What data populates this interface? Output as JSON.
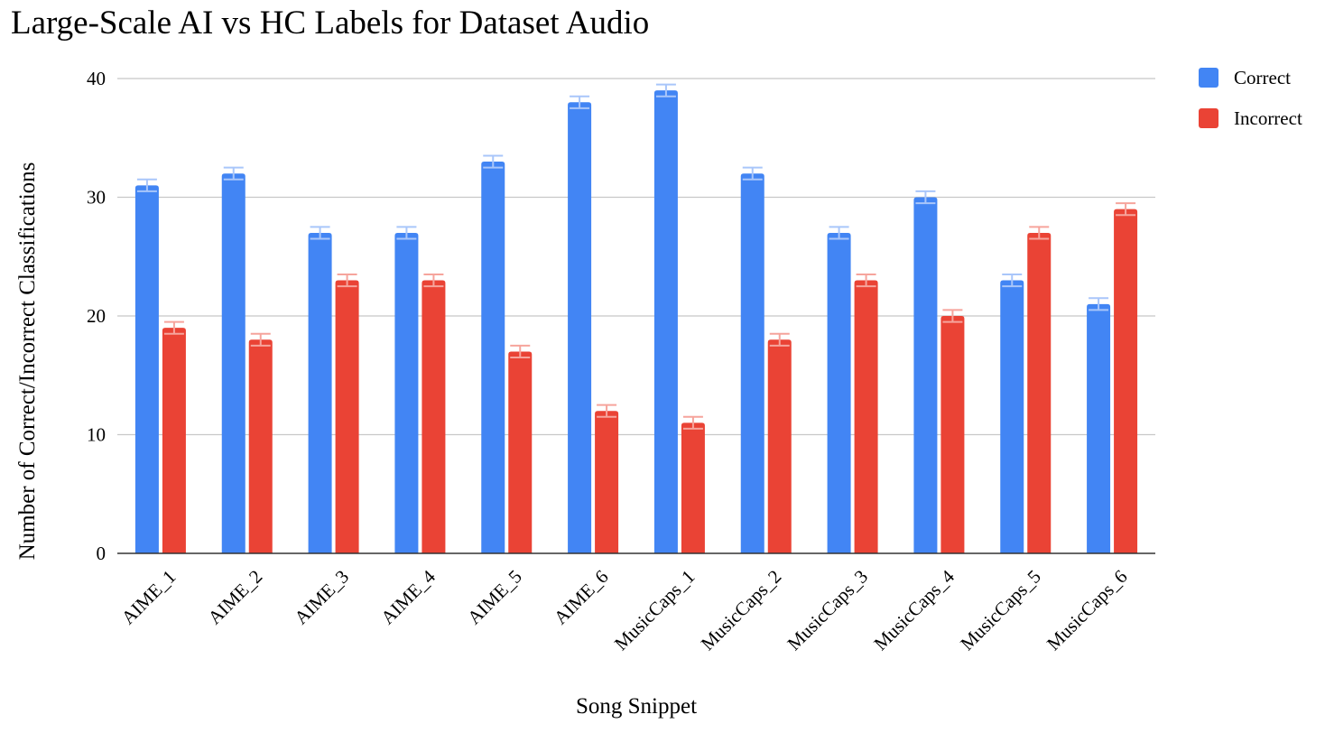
{
  "chart_data": {
    "type": "bar",
    "title": "Large-Scale AI vs HC Labels for Dataset Audio",
    "xlabel": "Song Snippet",
    "ylabel": "Number of Correct/Incorrect Classifications",
    "categories": [
      "AIME_1",
      "AIME_2",
      "AIME_3",
      "AIME_4",
      "AIME_5",
      "AIME_6",
      "MusicCaps_1",
      "MusicCaps_2",
      "MusicCaps_3",
      "MusicCaps_4",
      "MusicCaps_5",
      "MusicCaps_6"
    ],
    "series": [
      {
        "name": "Correct",
        "color": "#4285f4",
        "values": [
          31,
          32,
          27,
          27,
          33,
          38,
          39,
          32,
          27,
          30,
          23,
          21
        ]
      },
      {
        "name": "Incorrect",
        "color": "#ea4335",
        "values": [
          19,
          18,
          23,
          23,
          17,
          12,
          11,
          18,
          23,
          20,
          27,
          29
        ]
      }
    ],
    "error_bar": 0.5,
    "ylim": [
      0,
      40
    ],
    "yticks": [
      0,
      10,
      20,
      30,
      40
    ],
    "grid": true,
    "legend_position": "top-right"
  }
}
